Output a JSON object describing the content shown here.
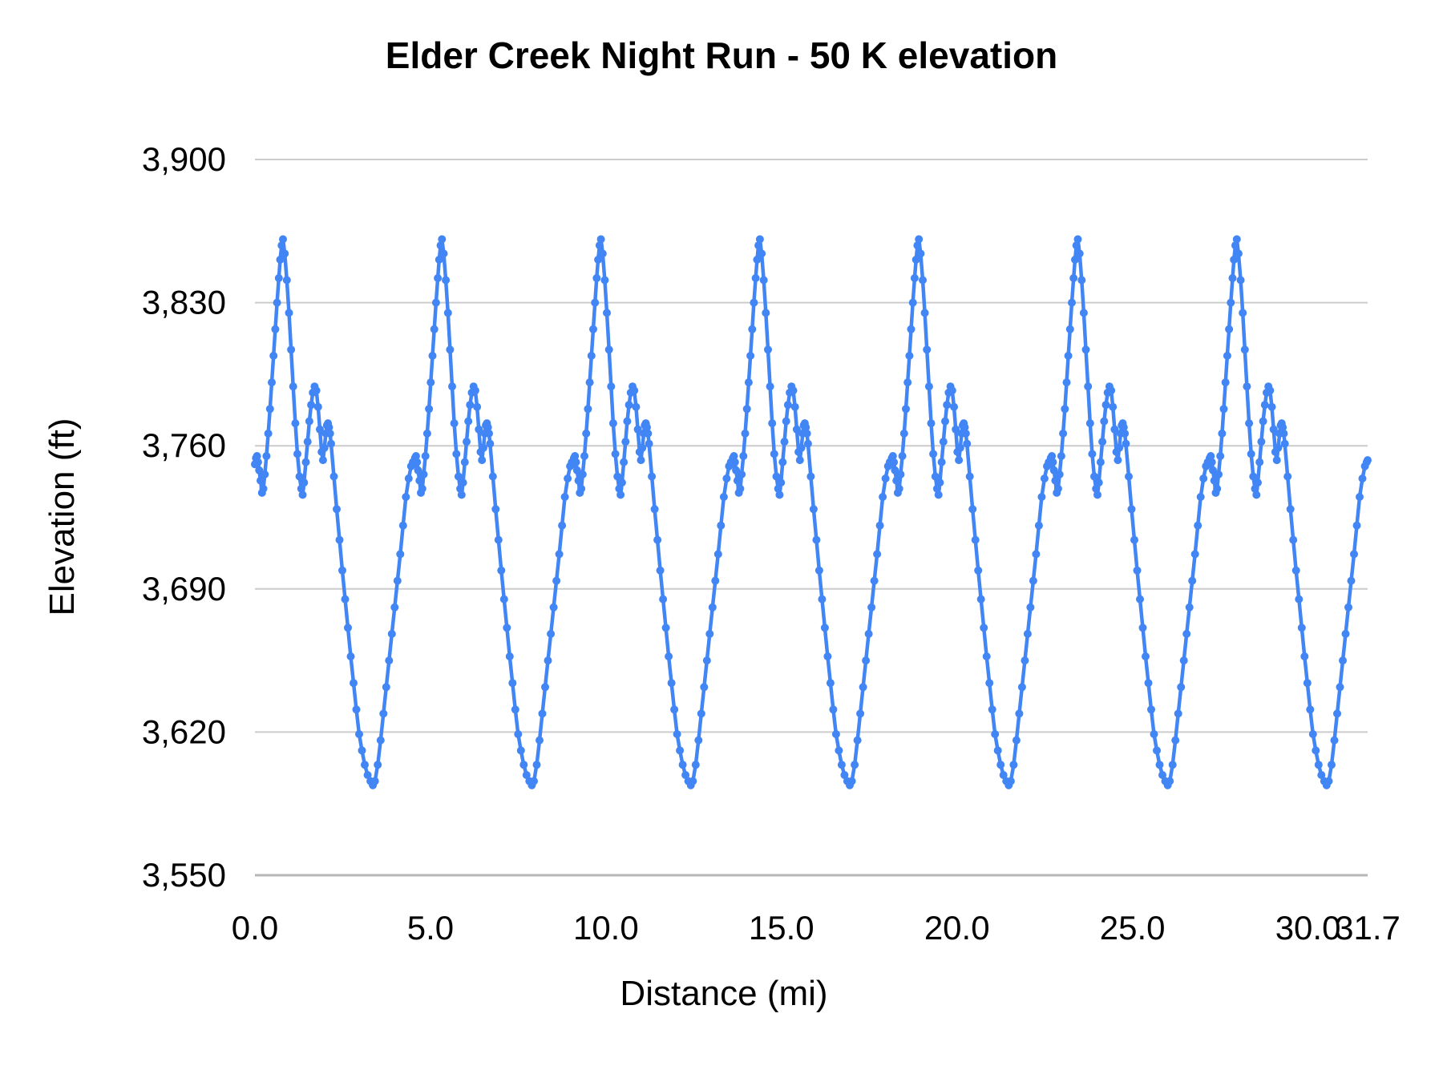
{
  "page": {
    "background": "#ffffff",
    "text_color": "#000000"
  },
  "chart_data": {
    "type": "line",
    "title": "Elder Creek Night Run - 50 K elevation",
    "xlabel": "Distance (mi)",
    "ylabel": "Elevation (ft)",
    "xlim": [
      0,
      31.7
    ],
    "ylim": [
      3550,
      3900
    ],
    "legend": "none",
    "grid": {
      "horizontal": true,
      "vertical": false,
      "gridline_color": "#cccccc",
      "baseline_color": "#b7b7b7"
    },
    "x_ticks": {
      "values": [
        0,
        5,
        10,
        15,
        20,
        25,
        30,
        31.7
      ],
      "labels": [
        "0.0",
        "5.0",
        "10.0",
        "15.0",
        "20.0",
        "25.0",
        "30.0",
        "31.7"
      ]
    },
    "y_ticks": {
      "values": [
        3550,
        3620,
        3690,
        3760,
        3830,
        3900
      ],
      "labels": [
        "3,550",
        "3,620",
        "3,690",
        "3,760",
        "3,830",
        "3,900"
      ]
    },
    "series": [
      {
        "name": "elevation",
        "color": "#4285f4",
        "marker": "circle",
        "structure": "course of 7 identical laps; elevation profile below repeats 7 times",
        "laps": 7,
        "lap_length_mi": 4.5286,
        "lap_profile": {
          "d_mi": [
            0.0,
            0.03,
            0.06,
            0.09,
            0.12,
            0.16,
            0.2,
            0.24,
            0.28,
            0.33,
            0.38,
            0.43,
            0.48,
            0.53,
            0.58,
            0.63,
            0.68,
            0.72,
            0.76,
            0.8,
            0.85,
            0.91,
            0.97,
            1.03,
            1.09,
            1.15,
            1.21,
            1.27,
            1.32,
            1.36,
            1.4,
            1.45,
            1.5,
            1.55,
            1.6,
            1.65,
            1.7,
            1.75,
            1.8,
            1.85,
            1.9,
            1.94,
            1.98,
            2.02,
            2.05,
            2.08,
            2.11,
            2.14,
            2.17,
            2.25,
            2.33,
            2.41,
            2.49,
            2.57,
            2.65,
            2.73,
            2.81,
            2.89,
            2.97,
            3.05,
            3.13,
            3.21,
            3.29,
            3.36,
            3.42,
            3.5,
            3.58,
            3.66,
            3.74,
            3.82,
            3.9,
            3.98,
            4.06,
            4.14,
            4.22,
            4.3,
            4.38,
            4.45,
            4.5
          ],
          "elevation_ft": [
            3751,
            3754,
            3755,
            3752,
            3748,
            3743,
            3737,
            3739,
            3746,
            3755,
            3766,
            3778,
            3791,
            3804,
            3817,
            3830,
            3842,
            3851,
            3858,
            3861,
            3854,
            3841,
            3825,
            3807,
            3789,
            3771,
            3756,
            3745,
            3739,
            3736,
            3742,
            3752,
            3762,
            3772,
            3780,
            3786,
            3789,
            3787,
            3779,
            3768,
            3757,
            3753,
            3759,
            3766,
            3770,
            3771,
            3769,
            3766,
            3761,
            3745,
            3729,
            3714,
            3699,
            3685,
            3671,
            3657,
            3644,
            3631,
            3619,
            3611,
            3604,
            3599,
            3596,
            3594,
            3596,
            3604,
            3616,
            3629,
            3642,
            3655,
            3668,
            3681,
            3694,
            3707,
            3721,
            3735,
            3744,
            3750,
            3752
          ]
        },
        "key_features": {
          "lap_high_point_ft": 3861,
          "lap_secondary_peak_ft": 3789,
          "lap_low_point_ft": 3594,
          "start_elevation_ft": 3751
        },
        "final_point": {
          "x_mi": 31.7,
          "elevation_ft": 3753
        }
      }
    ]
  }
}
